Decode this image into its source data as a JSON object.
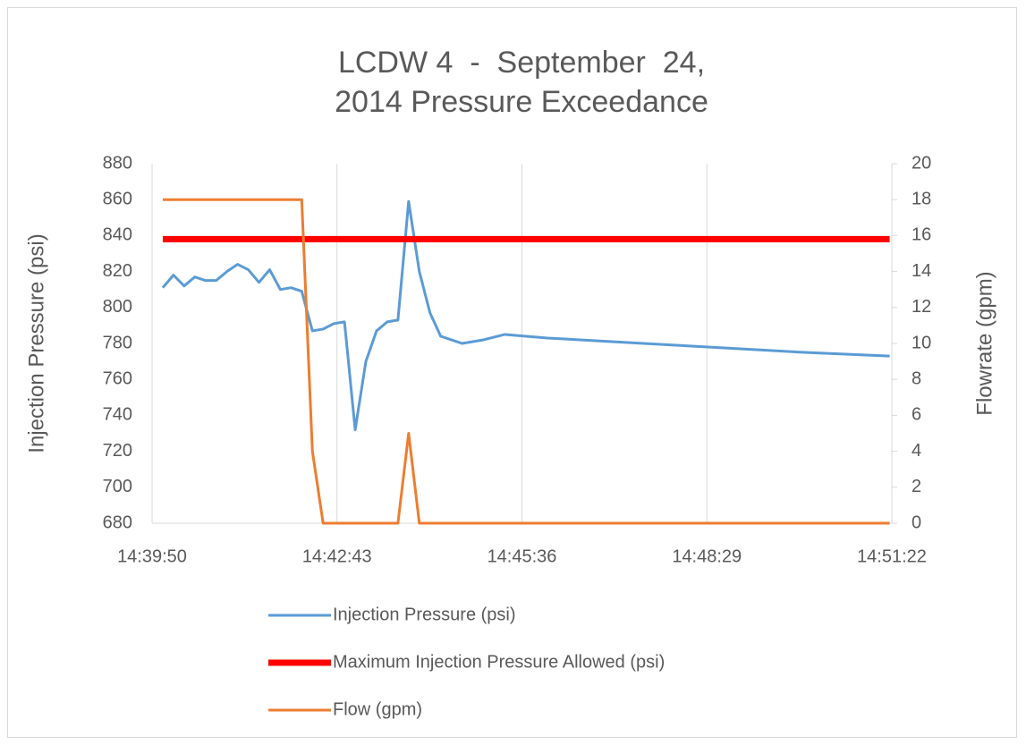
{
  "chart_data": {
    "type": "line",
    "title": "LCDW 4  -  September  24, 2014 Pressure Exceedance",
    "ylabel": "Injection Pressure (psi)",
    "y2label": "Flowrate (gpm)",
    "x": [
      "14:40:00",
      "14:40:10",
      "14:40:20",
      "14:40:30",
      "14:40:40",
      "14:40:50",
      "14:41:00",
      "14:41:10",
      "14:41:20",
      "14:41:30",
      "14:41:40",
      "14:41:50",
      "14:42:00",
      "14:42:10",
      "14:42:20",
      "14:42:30",
      "14:42:40",
      "14:42:50",
      "14:43:00",
      "14:43:10",
      "14:43:20",
      "14:43:30",
      "14:43:40",
      "14:43:50",
      "14:44:00",
      "14:44:10",
      "14:44:20",
      "14:44:40",
      "14:45:00",
      "14:45:20",
      "14:46:00",
      "14:47:00",
      "14:48:00",
      "14:49:00",
      "14:50:00",
      "14:51:20"
    ],
    "series": [
      {
        "name": "Injection Pressure (psi)",
        "color": "#5b9bd5",
        "values": [
          811,
          818,
          812,
          817,
          815,
          815,
          820,
          824,
          821,
          814,
          821,
          810,
          811,
          809,
          787,
          788,
          791,
          792,
          732,
          770,
          787,
          792,
          793,
          859,
          820,
          797,
          784,
          780,
          782,
          785,
          783,
          781,
          779,
          777,
          775,
          773
        ]
      },
      {
        "name": "Maximum Injection Pressure Allowed (psi)",
        "color": "#ff0000",
        "values": [
          838,
          838,
          838,
          838,
          838,
          838,
          838,
          838,
          838,
          838,
          838,
          838,
          838,
          838,
          838,
          838,
          838,
          838,
          838,
          838,
          838,
          838,
          838,
          838,
          838,
          838,
          838,
          838,
          838,
          838,
          838,
          838,
          838,
          838,
          838,
          838
        ]
      },
      {
        "name": "Flow (gpm)",
        "color": "#ed7d31",
        "axis": "y2",
        "values": [
          18,
          18,
          18,
          18,
          18,
          18,
          18,
          18,
          18,
          18,
          18,
          18,
          18,
          18,
          4,
          0,
          0,
          0,
          0,
          0,
          0,
          0,
          0,
          5,
          0,
          0,
          0,
          0,
          0,
          0,
          0,
          0,
          0,
          0,
          0,
          0
        ]
      }
    ],
    "xlim": [
      "14:39:50",
      "14:51:22"
    ],
    "xticks": [
      "14:39:50",
      "14:42:43",
      "14:45:36",
      "14:48:29",
      "14:51:22"
    ],
    "ylim": [
      680,
      880
    ],
    "yticks": [
      680,
      700,
      720,
      740,
      760,
      780,
      800,
      820,
      840,
      860,
      880
    ],
    "y2lim": [
      0,
      20
    ],
    "y2ticks": [
      0,
      2,
      4,
      6,
      8,
      10,
      12,
      14,
      16,
      18,
      20
    ],
    "grid": "x",
    "legend": "bottom"
  }
}
